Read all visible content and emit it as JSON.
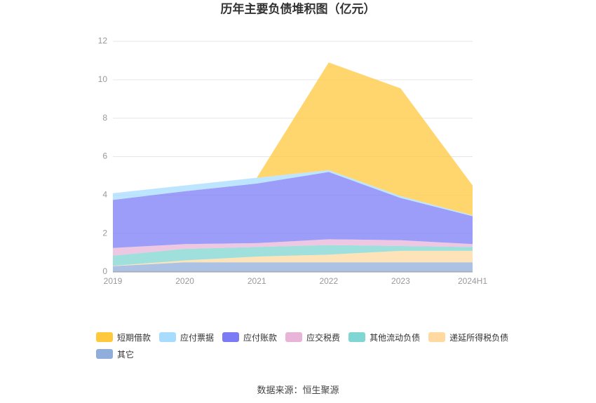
{
  "chart_data": {
    "type": "stacked_area",
    "title": "历年主要负债堆积图（亿元）",
    "categories": [
      "2019",
      "2020",
      "2021",
      "2022",
      "2023",
      "2024H1"
    ],
    "series": [
      {
        "name": "其它",
        "color": "#8faedb",
        "values": [
          0.3,
          0.5,
          0.5,
          0.5,
          0.5,
          0.5
        ]
      },
      {
        "name": "递延所得税负债",
        "color": "#ffd9a0",
        "values": [
          0.02,
          0.1,
          0.3,
          0.4,
          0.6,
          0.6
        ]
      },
      {
        "name": "其他流动负债",
        "color": "#7fd6d2",
        "values": [
          0.53,
          0.6,
          0.5,
          0.5,
          0.25,
          0.2
        ]
      },
      {
        "name": "应交税费",
        "color": "#e8b4d8",
        "values": [
          0.4,
          0.25,
          0.2,
          0.3,
          0.3,
          0.15
        ]
      },
      {
        "name": "应付账款",
        "color": "#7b7cf5",
        "values": [
          2.5,
          2.75,
          3.1,
          3.5,
          2.2,
          1.45
        ]
      },
      {
        "name": "应付票据",
        "color": "#a8dcff",
        "values": [
          0.35,
          0.3,
          0.3,
          0.1,
          0.1,
          0.05
        ]
      },
      {
        "name": "短期借款",
        "color": "#ffc83d",
        "values": [
          0,
          0,
          0,
          5.6,
          5.6,
          1.55
        ]
      }
    ],
    "legend_order": [
      6,
      5,
      4,
      3,
      2,
      1,
      0
    ],
    "ylim": [
      0,
      12
    ],
    "yticks": [
      0,
      2,
      4,
      6,
      8,
      10,
      12
    ],
    "grid": true,
    "source": "数据来源：恒生聚源"
  }
}
